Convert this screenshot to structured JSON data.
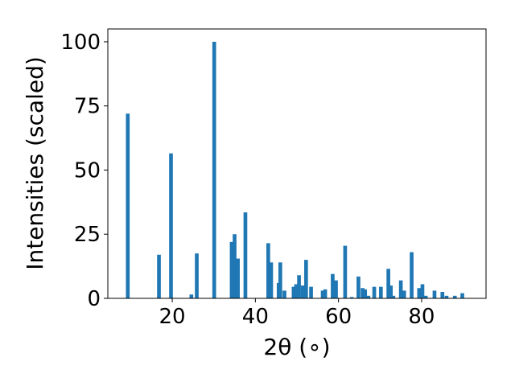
{
  "chart_data": {
    "type": "bar",
    "title": "",
    "xlabel": "2θ (∘)",
    "ylabel": "Intensities (scaled)",
    "xlim": [
      4.5,
      95.5
    ],
    "ylim": [
      0,
      105
    ],
    "xticks": [
      20,
      40,
      60,
      80
    ],
    "yticks": [
      0,
      25,
      50,
      75,
      100
    ],
    "bar_width": 0.9,
    "bar_color": "#1f77b4",
    "grid": false,
    "legend": "none",
    "x": [
      9.3,
      16.8,
      19.7,
      24.6,
      25.9,
      30.1,
      34.3,
      35.0,
      35.8,
      37.6,
      43.1,
      43.8,
      45.6,
      46.0,
      47.0,
      49.2,
      49.8,
      50.5,
      51.4,
      52.2,
      53.4,
      56.2,
      56.8,
      58.6,
      59.4,
      61.6,
      63.2,
      64.8,
      65.8,
      66.4,
      67.2,
      68.6,
      70.2,
      72.0,
      72.6,
      73.2,
      75.0,
      75.8,
      77.6,
      79.4,
      80.2,
      81.0,
      83.1,
      85.0,
      86.0,
      88.0,
      89.8
    ],
    "values": [
      72,
      17,
      56.5,
      1.5,
      17.5,
      100,
      22,
      25,
      15.5,
      33.5,
      21.5,
      14,
      6,
      14,
      3,
      4.5,
      5.5,
      9,
      5,
      15,
      4.5,
      3,
      3.5,
      9.5,
      7,
      20.5,
      0.5,
      8.5,
      4,
      3.5,
      1,
      4.5,
      4.5,
      11.5,
      5,
      1,
      7,
      3,
      18,
      4,
      5.5,
      1,
      3,
      2.5,
      1,
      1,
      2
    ]
  }
}
